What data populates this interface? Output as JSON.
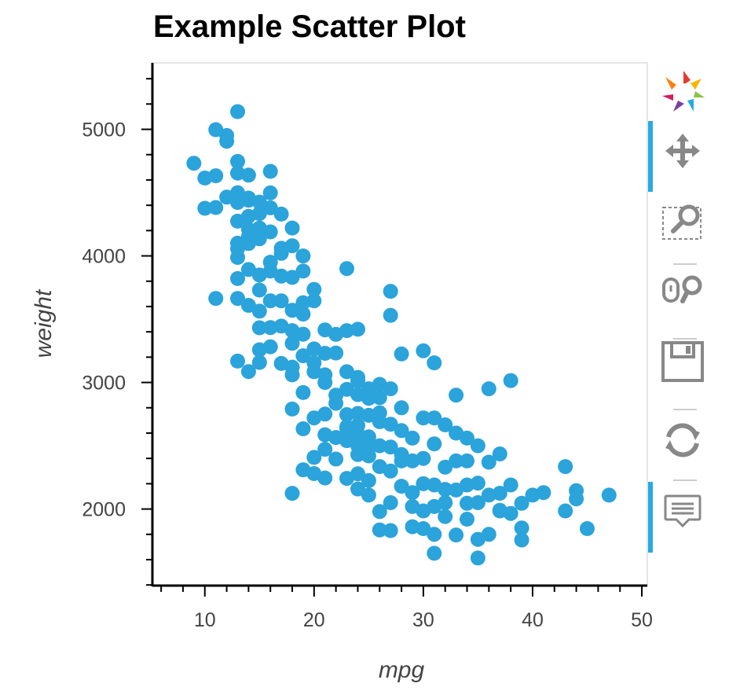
{
  "chart_data": {
    "type": "scatter",
    "title": "Example Scatter Plot",
    "xlabel": "mpg",
    "ylabel": "weight",
    "xlim": [
      5.2,
      50.5
    ],
    "ylim": [
      1395,
      5525
    ],
    "x_ticks": [
      10,
      20,
      30,
      40,
      50
    ],
    "y_ticks": [
      2000,
      3000,
      4000,
      5000
    ],
    "color": "#2ba3db",
    "grid": false,
    "points": [
      [
        9,
        4732
      ],
      [
        10,
        4615
      ],
      [
        10,
        4376
      ],
      [
        11,
        4633
      ],
      [
        11,
        4382
      ],
      [
        11,
        3664
      ],
      [
        11,
        4997
      ],
      [
        12,
        4464
      ],
      [
        12,
        4951
      ],
      [
        12,
        4906
      ],
      [
        13,
        5140
      ],
      [
        13,
        4746
      ],
      [
        13,
        4654
      ],
      [
        13,
        4499
      ],
      [
        13,
        4456
      ],
      [
        13,
        4422
      ],
      [
        13,
        4274
      ],
      [
        13,
        4100
      ],
      [
        13,
        4057
      ],
      [
        13,
        3988
      ],
      [
        13,
        3821
      ],
      [
        13,
        3664
      ],
      [
        13,
        3169
      ],
      [
        14,
        4638
      ],
      [
        14,
        4457
      ],
      [
        14,
        4440
      ],
      [
        14,
        4312
      ],
      [
        14,
        4209
      ],
      [
        14,
        4154
      ],
      [
        14,
        4098
      ],
      [
        14,
        3892
      ],
      [
        14,
        3609
      ],
      [
        14,
        3086
      ],
      [
        15,
        4425
      ],
      [
        15,
        4335
      ],
      [
        15,
        4220
      ],
      [
        15,
        4135
      ],
      [
        15,
        3849
      ],
      [
        15,
        3730
      ],
      [
        15,
        3563
      ],
      [
        15,
        3432
      ],
      [
        15,
        3258
      ],
      [
        15,
        3158
      ],
      [
        16,
        4668
      ],
      [
        16,
        4498
      ],
      [
        16,
        4380
      ],
      [
        16,
        4190
      ],
      [
        16,
        3880
      ],
      [
        16,
        3645
      ],
      [
        16,
        3433
      ],
      [
        16,
        3282
      ],
      [
        17,
        4330
      ],
      [
        17,
        4060
      ],
      [
        17,
        3840
      ],
      [
        17,
        3645
      ],
      [
        17,
        3445
      ],
      [
        17,
        3150
      ],
      [
        18,
        4220
      ],
      [
        18,
        4080
      ],
      [
        18,
        3830
      ],
      [
        18,
        3570
      ],
      [
        18,
        3410
      ],
      [
        18,
        3121
      ],
      [
        18,
        2790
      ],
      [
        18,
        2124
      ],
      [
        18,
        3060
      ],
      [
        19,
        3880
      ],
      [
        19,
        3630
      ],
      [
        19,
        3381
      ],
      [
        19,
        3211
      ],
      [
        19,
        2920
      ],
      [
        19,
        2634
      ],
      [
        19,
        2310
      ],
      [
        19,
        3540
      ],
      [
        19,
        4000
      ],
      [
        20,
        3735
      ],
      [
        20,
        3645
      ],
      [
        20,
        3265
      ],
      [
        20,
        3085
      ],
      [
        20,
        2720
      ],
      [
        20,
        2408
      ],
      [
        20,
        2280
      ],
      [
        20,
        3155
      ],
      [
        21,
        3415
      ],
      [
        21,
        3230
      ],
      [
        21,
        3060
      ],
      [
        21,
        2750
      ],
      [
        21,
        2587
      ],
      [
        21,
        2472
      ],
      [
        21,
        2245
      ],
      [
        22,
        3380
      ],
      [
        22,
        3233
      ],
      [
        22,
        2835
      ],
      [
        22,
        2565
      ],
      [
        22,
        2395
      ],
      [
        23,
        3410
      ],
      [
        23,
        3900
      ],
      [
        23,
        3085
      ],
      [
        23,
        2945
      ],
      [
        23,
        2746
      ],
      [
        23,
        2635
      ],
      [
        23,
        2540
      ],
      [
        23,
        2242
      ],
      [
        24,
        3420
      ],
      [
        24,
        3012
      ],
      [
        24,
        2904
      ],
      [
        24,
        2755
      ],
      [
        24,
        2660
      ],
      [
        24,
        2592
      ],
      [
        24,
        2430
      ],
      [
        24,
        2278
      ],
      [
        24,
        2158
      ],
      [
        25,
        2950
      ],
      [
        25,
        2875
      ],
      [
        25,
        2740
      ],
      [
        25,
        2570
      ],
      [
        25,
        2420
      ],
      [
        25,
        2225
      ],
      [
        25,
        2110
      ],
      [
        26,
        2985
      ],
      [
        26,
        2880
      ],
      [
        26,
        2690
      ],
      [
        26,
        2500
      ],
      [
        26,
        2335
      ],
      [
        26,
        1980
      ],
      [
        26,
        1835
      ],
      [
        27,
        3530
      ],
      [
        27,
        3720
      ],
      [
        27,
        2950
      ],
      [
        27,
        2670
      ],
      [
        27,
        2490
      ],
      [
        27,
        2300
      ],
      [
        27,
        2050
      ],
      [
        27,
        1830
      ],
      [
        28,
        3225
      ],
      [
        28,
        2800
      ],
      [
        28,
        2620
      ],
      [
        28,
        2430
      ],
      [
        28,
        2180
      ],
      [
        29,
        2560
      ],
      [
        29,
        2380
      ],
      [
        29,
        2020
      ],
      [
        29,
        1860
      ],
      [
        30,
        3250
      ],
      [
        30,
        2720
      ],
      [
        30,
        2400
      ],
      [
        30,
        2200
      ],
      [
        30,
        1985
      ],
      [
        30,
        1845
      ],
      [
        31,
        3155
      ],
      [
        31,
        2720
      ],
      [
        31,
        2515
      ],
      [
        31,
        2190
      ],
      [
        31,
        2020
      ],
      [
        31,
        1800
      ],
      [
        31,
        1650
      ],
      [
        32,
        2665
      ],
      [
        32,
        2330
      ],
      [
        32,
        2155
      ],
      [
        32,
        1940
      ],
      [
        33,
        2900
      ],
      [
        33,
        2600
      ],
      [
        33,
        2380
      ],
      [
        33,
        2150
      ],
      [
        33,
        1795
      ],
      [
        34,
        2560
      ],
      [
        34,
        2380
      ],
      [
        34,
        2190
      ],
      [
        34,
        2045
      ],
      [
        35,
        2500
      ],
      [
        35,
        2205
      ],
      [
        35,
        2050
      ],
      [
        35,
        1760
      ],
      [
        35,
        1613
      ],
      [
        36,
        2950
      ],
      [
        36,
        2370
      ],
      [
        36,
        2110
      ],
      [
        36,
        1800
      ],
      [
        37,
        2435
      ],
      [
        37,
        2125
      ],
      [
        37,
        1985
      ],
      [
        38,
        3015
      ],
      [
        38,
        2190
      ],
      [
        38,
        1965
      ],
      [
        39,
        2045
      ],
      [
        39,
        1850
      ],
      [
        39,
        1755
      ],
      [
        40,
        2110
      ],
      [
        41,
        2130
      ],
      [
        43,
        2335
      ],
      [
        43,
        1985
      ],
      [
        44,
        2145
      ],
      [
        44,
        2080
      ],
      [
        45,
        1845
      ],
      [
        47,
        2110
      ],
      [
        24,
        3040
      ],
      [
        25,
        2490
      ],
      [
        23,
        2650
      ],
      [
        26,
        2760
      ],
      [
        28,
        2380
      ],
      [
        29,
        2130
      ],
      [
        32,
        2050
      ],
      [
        34,
        1920
      ],
      [
        37,
        1990
      ],
      [
        16,
        3950
      ],
      [
        17,
        4020
      ],
      [
        18,
        3310
      ],
      [
        21,
        3000
      ],
      [
        22,
        2900
      ],
      [
        24,
        2500
      ]
    ]
  },
  "toolbar": {
    "tools": [
      "logo",
      "pan",
      "box-zoom",
      "wheel-zoom",
      "save",
      "reset",
      "hover"
    ],
    "accent": "#26aae1"
  }
}
